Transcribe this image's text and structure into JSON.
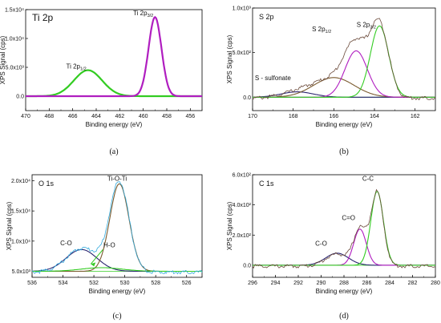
{
  "figure": {
    "colors": {
      "envelope": "#2aa5b3",
      "fit_green": "#33cc22",
      "fit_purple": "#b01ec0",
      "fit_brown": "#7a5a2e",
      "fit_navy": "#2b2570",
      "raw": "#6b4a3a",
      "residual": "#33aadd",
      "arrow": "#33cc22"
    }
  },
  "chart_data": [
    {
      "type": "line",
      "panel_label": "(a)",
      "title": "Ti 2p",
      "xlabel": "Binding energy (eV)",
      "ylabel": "XPS Signal (cps)",
      "xlim": [
        470,
        455
      ],
      "ylim": [
        -0.25,
        1.5
      ],
      "y_multiplier": "x10^4",
      "xticks": [
        470,
        468,
        466,
        464,
        462,
        460,
        458,
        456
      ],
      "xtick_labels": [
        "470",
        "468",
        "466",
        "464",
        "462",
        "460",
        "458",
        "456"
      ],
      "yticks": [
        0.0,
        0.5,
        1.0,
        1.5
      ],
      "ytick_labels": [
        "0.0",
        "5.0x10³",
        "1.0x10⁴",
        "1.5x10⁴"
      ],
      "series": [
        {
          "component": "Ti 2p1/2",
          "center": 464.7,
          "height": 0.45,
          "width": 1.2,
          "color_key": "fit_green"
        },
        {
          "component": "Ti 2p3/2",
          "center": 459.0,
          "height": 1.37,
          "width": 0.55,
          "color_key": "fit_purple"
        }
      ],
      "annotations": [
        {
          "text": "Ti 2p",
          "sub": "1/2",
          "at": [
            465.7,
            0.48
          ]
        },
        {
          "text": "Ti 2p",
          "sub": "3/2",
          "at": [
            460.0,
            1.4
          ]
        }
      ]
    },
    {
      "type": "line",
      "panel_label": "(b)",
      "title": "S 2p",
      "xlabel": "Binding energy (eV)",
      "ylabel": "XPS Signal (cps)",
      "xlim": [
        170,
        161
      ],
      "ylim": [
        -0.15,
        1.0
      ],
      "y_multiplier": "x10^3",
      "xticks": [
        170,
        168,
        166,
        164,
        162
      ],
      "xtick_labels": [
        "170",
        "168",
        "166",
        "164",
        "162"
      ],
      "yticks": [
        0.0,
        0.5,
        1.0
      ],
      "ytick_labels": [
        "0.0",
        "5.0x10²",
        "1.0x10³"
      ],
      "series": [
        {
          "component": "S - sulfonate",
          "center": 167.8,
          "height": 0.06,
          "width": 0.8,
          "color_key": "fit_navy"
        },
        {
          "component": "broad",
          "center": 166.0,
          "height": 0.22,
          "width": 1.0,
          "color_key": "fit_brown"
        },
        {
          "component": "S 2p1/2",
          "center": 164.9,
          "height": 0.52,
          "width": 0.55,
          "color_key": "fit_purple"
        },
        {
          "component": "S 2p3/2",
          "center": 163.75,
          "height": 0.8,
          "width": 0.45,
          "color_key": "fit_green"
        }
      ],
      "annotations": [
        {
          "text": "S - sulfonate",
          "at": [
            169.0,
            0.19
          ]
        },
        {
          "text": "S 2p",
          "sub": "1/2",
          "at": [
            166.6,
            0.74
          ]
        },
        {
          "text": "S 2p",
          "sub": "3/2",
          "at": [
            164.4,
            0.79
          ]
        }
      ]
    },
    {
      "type": "line",
      "panel_label": "(c)",
      "title": "O 1s",
      "xlabel": "Binding energy (eV)",
      "ylabel": "XPS Signal (cps)",
      "xlim": [
        536,
        525
      ],
      "ylim": [
        0.4,
        2.1
      ],
      "y_multiplier": "x10^4",
      "xticks": [
        536,
        534,
        532,
        530,
        528,
        526
      ],
      "xtick_labels": [
        "536",
        "534",
        "532",
        "530",
        "528",
        "526"
      ],
      "yticks": [
        0.5,
        1.0,
        1.5,
        2.0
      ],
      "ytick_labels": [
        "5.0x10³",
        "1.0x10⁴",
        "1.5x10⁴",
        "2.0x10⁴"
      ],
      "baseline": 0.5,
      "series": [
        {
          "component": "C-O",
          "center": 532.8,
          "height": 0.36,
          "width": 1.0,
          "color_key": "fit_navy"
        },
        {
          "component": "Ti-O-Ti",
          "center": 530.35,
          "height": 1.45,
          "width": 0.62,
          "color_key": "fit_brown"
        },
        {
          "component": "H-O",
          "center": 531.5,
          "height": 0.06,
          "width": 1.3,
          "color_key": "fit_green"
        }
      ],
      "annotations": [
        {
          "text": "C-O",
          "at": [
            533.8,
            0.93
          ]
        },
        {
          "text": "Ti-O-Ti",
          "at": [
            530.5,
            2.0
          ]
        },
        {
          "text": "H-O",
          "at": [
            531.0,
            0.9
          ],
          "arrow_to": [
            532.2,
            0.62
          ]
        }
      ]
    },
    {
      "type": "line",
      "panel_label": "(d)",
      "title": "C 1s",
      "xlabel": "Binding energy (eV)",
      "ylabel": "XPS Signal (cps)",
      "xlim": [
        296,
        280
      ],
      "ylim": [
        -0.08,
        0.6
      ],
      "y_multiplier": "x10^3",
      "xticks": [
        296,
        294,
        292,
        290,
        288,
        286,
        284,
        282,
        280
      ],
      "xtick_labels": [
        "296",
        "294",
        "292",
        "290",
        "288",
        "286",
        "284",
        "282",
        "280"
      ],
      "yticks": [
        0.0,
        0.2,
        0.4,
        0.6
      ],
      "ytick_labels": [
        "0.0",
        "2.0x10²",
        "4.0x10²",
        "6.0x10²"
      ],
      "series": [
        {
          "component": "C-O",
          "center": 288.6,
          "height": 0.08,
          "width": 1.0,
          "color_key": "fit_navy"
        },
        {
          "component": "C=O",
          "center": 286.6,
          "height": 0.24,
          "width": 0.55,
          "color_key": "fit_purple"
        },
        {
          "component": "C-C",
          "center": 285.1,
          "height": 0.49,
          "width": 0.55,
          "color_key": "fit_green"
        }
      ],
      "annotations": [
        {
          "text": "C-O",
          "at": [
            290.0,
            0.13
          ]
        },
        {
          "text": "C=O",
          "at": [
            287.6,
            0.3
          ]
        },
        {
          "text": "C-C",
          "at": [
            285.9,
            0.56
          ]
        }
      ]
    }
  ]
}
